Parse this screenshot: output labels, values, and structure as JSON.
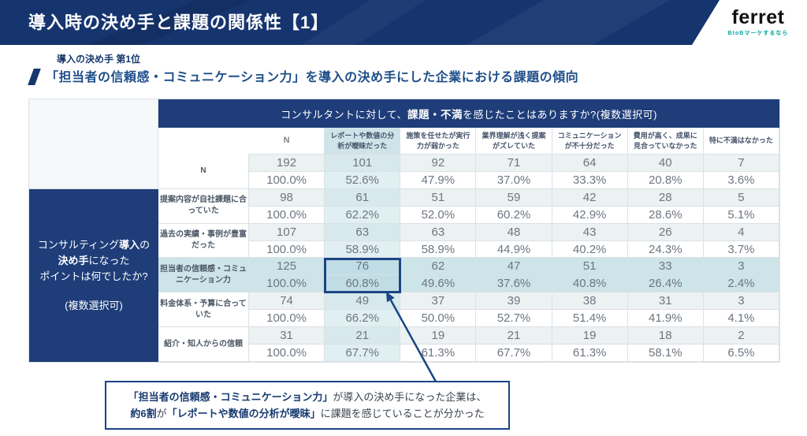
{
  "header": {
    "title": "導入時の決め手と課題の関係性【1】",
    "logo": {
      "brand": "ferret",
      "tagline": "BtoBマーケするなら"
    }
  },
  "lead": {
    "kicker": "導入の決め手 第1位",
    "heading": "「担当者の信頼感・コミュニケーション力」を導入の決め手にした企業における課題の傾向"
  },
  "table": {
    "question": {
      "pre": "コンサルタントに対して、",
      "bold": "課題・不満",
      "post": "を感じたことはありますか?(複数選択可)"
    },
    "group_label": {
      "l1a": "コンサルティング",
      "l1b": "導入",
      "l1c": "の",
      "l2a": "決め手",
      "l2b": "になった",
      "l3": "ポイントは何でしたか?",
      "l4": "(複数選択可)"
    },
    "columns": [
      "N",
      "レポートや数値の分析が曖昧だった",
      "施策を任せたが実行力が弱かった",
      "業界理解が浅く提案がズレていた",
      "コミュニケーションが不十分だった",
      "費用が高く、成果に見合っていなかった",
      "特に不満はなかった"
    ],
    "rows": [
      {
        "label": "N",
        "counts": [
          192,
          101,
          92,
          71,
          64,
          40,
          7
        ],
        "pcts": [
          "100.0%",
          "52.6%",
          "47.9%",
          "37.0%",
          "33.3%",
          "20.8%",
          "3.6%"
        ]
      },
      {
        "label": "提案内容が自社課題に合っていた",
        "counts": [
          98,
          61,
          51,
          59,
          42,
          28,
          5
        ],
        "pcts": [
          "100.0%",
          "62.2%",
          "52.0%",
          "60.2%",
          "42.9%",
          "28.6%",
          "5.1%"
        ]
      },
      {
        "label": "過去の実績・事例が豊富だった",
        "counts": [
          107,
          63,
          63,
          48,
          43,
          26,
          4
        ],
        "pcts": [
          "100.0%",
          "58.9%",
          "58.9%",
          "44.9%",
          "40.2%",
          "24.3%",
          "3.7%"
        ]
      },
      {
        "label": "担当者の信頼感・コミュニケーション力",
        "counts": [
          125,
          76,
          62,
          47,
          51,
          33,
          3
        ],
        "pcts": [
          "100.0%",
          "60.8%",
          "49.6%",
          "37.6%",
          "40.8%",
          "26.4%",
          "2.4%"
        ]
      },
      {
        "label": "料金体系・予算に合っていた",
        "counts": [
          74,
          49,
          37,
          39,
          38,
          31,
          3
        ],
        "pcts": [
          "100.0%",
          "66.2%",
          "50.0%",
          "52.7%",
          "51.4%",
          "41.9%",
          "4.1%"
        ]
      },
      {
        "label": "紹介・知人からの信頼",
        "counts": [
          31,
          21,
          19,
          21,
          19,
          18,
          2
        ],
        "pcts": [
          "100.0%",
          "67.7%",
          "61.3%",
          "67.7%",
          "61.3%",
          "58.1%",
          "6.5%"
        ]
      }
    ],
    "highlight": {
      "row": 3,
      "col": 1
    }
  },
  "callout": {
    "l1b": "「担当者の信頼感・コミュニケーション力」",
    "l1r": "が導入の決め手になった企業は、",
    "l2b1": "約6割",
    "l2m": "が",
    "l2b2": "「レポートや数値の分析が曖昧」",
    "l2r": "に課題を感じていることが分かった"
  },
  "colors": {
    "navy": "#16356f",
    "table_navy": "#1e3d79",
    "highlight_blue": "#cde4e9",
    "accent_border": "#1b4585",
    "logo_tagline_teal": "#00a79b"
  }
}
